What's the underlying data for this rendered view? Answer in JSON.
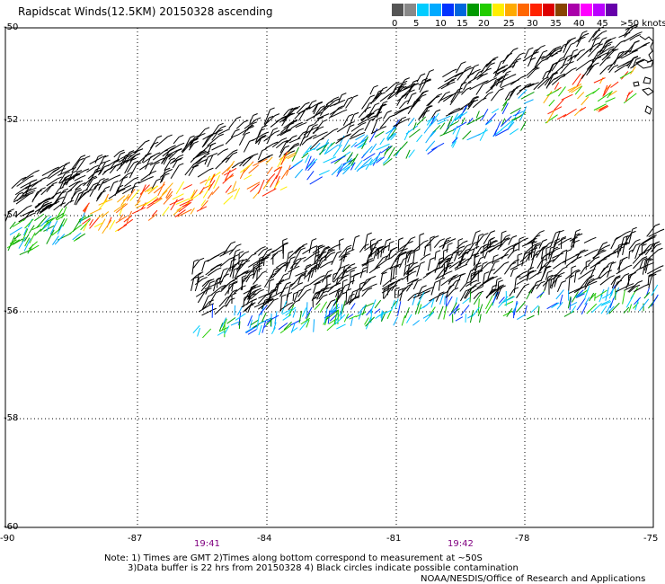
{
  "title": "Rapidscat Winds(12.5KM) 20150328 ascending",
  "colorbar": {
    "labels": [
      "0",
      "5",
      "10",
      "15",
      "20",
      "25",
      "30",
      "35",
      "40",
      "45",
      ">50 knots"
    ],
    "colors": [
      "#555555",
      "#888888",
      "#00ccff",
      "#00aaff",
      "#0033ff",
      "#0066dd",
      "#009900",
      "#22cc00",
      "#ffee00",
      "#ffaa00",
      "#ff6600",
      "#ff2200",
      "#dd0000",
      "#884400",
      "#aa00aa",
      "#ff00ff",
      "#bb00ff",
      "#6600aa"
    ]
  },
  "axes": {
    "lat_labels": [
      "-50",
      "-52",
      "-54",
      "-56",
      "-58",
      "-60"
    ],
    "lon_labels": [
      "-90",
      "-87",
      "-84",
      "-81",
      "-78",
      "-75"
    ]
  },
  "times": [
    "19:41",
    "19:42"
  ],
  "notes": {
    "line1": "Note: 1) Times are GMT 2)Times along bottom correspond to measurement at ~50S",
    "line2": "3)Data buffer is 22 hrs from 20150328 4) Black circles indicate possible contamination"
  },
  "credit": "NOAA/NESDIS/Office of Research and Applications"
}
